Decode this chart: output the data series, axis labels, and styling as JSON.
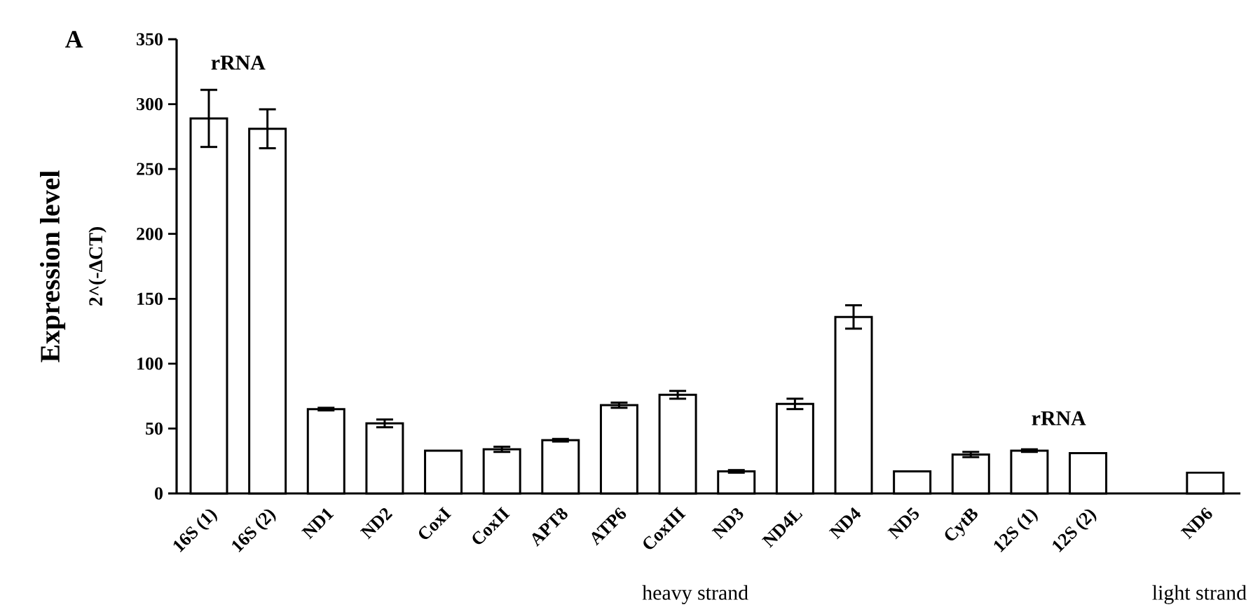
{
  "chart_data": {
    "type": "bar",
    "ylabel": "Expression level",
    "categories": [
      "16S (1)",
      "16S (2)",
      "ND1",
      "ND2",
      "CoxI",
      "CoxII",
      "APT8",
      "ATP6",
      "CoxIII",
      "ND3",
      "ND4L",
      "ND4",
      "ND5",
      "CytB",
      "12S (1)",
      "12S (2)",
      null,
      "ND6"
    ],
    "values": [
      289,
      281,
      65,
      54,
      33,
      34,
      41,
      68,
      76,
      17,
      69,
      136,
      17,
      30,
      33,
      31,
      null,
      16
    ],
    "errors": [
      22,
      15,
      1,
      3,
      null,
      2,
      1,
      2,
      3,
      1,
      4,
      9,
      null,
      2,
      1,
      null,
      null,
      null
    ],
    "color": "#ffffff",
    "ylim": [
      0,
      350
    ],
    "yticks": [
      0,
      50,
      100,
      150,
      200,
      250,
      300,
      350
    ],
    "grid": false,
    "annotations": [
      "A",
      "2^(-ΔCT)",
      "rRNA",
      "rRNA",
      "heavy strand",
      "light strand"
    ]
  }
}
